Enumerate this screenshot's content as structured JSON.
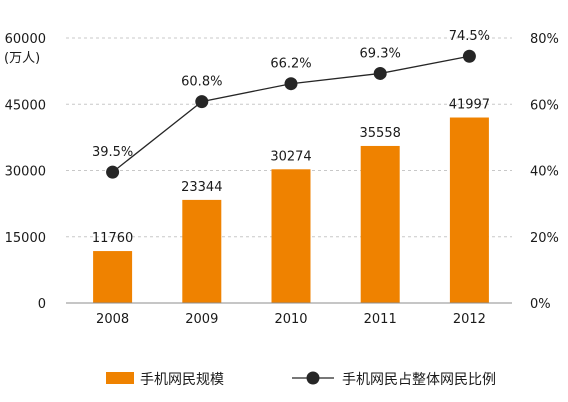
{
  "chart_data": {
    "type": "bar",
    "categories": [
      "2008",
      "2009",
      "2010",
      "2011",
      "2012"
    ],
    "left_axis": {
      "ticks": [
        "0",
        "15000",
        "30000",
        "45000",
        "60000"
      ],
      "unit": "(万人)",
      "ylim": [
        0,
        60000
      ]
    },
    "right_axis": {
      "ticks": [
        "0%",
        "20%",
        "40%",
        "60%",
        "80%"
      ],
      "ylim": [
        0,
        80
      ]
    },
    "series": [
      {
        "name": "手机网民规模",
        "type": "bar",
        "axis": "left",
        "values": [
          11760,
          23344,
          30274,
          35558,
          41997
        ],
        "labels": [
          "11760",
          "23344",
          "30274",
          "35558",
          "41997"
        ],
        "color": "#ef8200"
      },
      {
        "name": "手机网民占整体网民比例",
        "type": "line",
        "axis": "right",
        "values": [
          39.5,
          60.8,
          66.2,
          69.3,
          74.5
        ],
        "labels": [
          "39.5%",
          "60.8%",
          "66.2%",
          "69.3%",
          "74.5%"
        ],
        "color": "#262626"
      }
    ],
    "grid": true,
    "legend_position": "bottom"
  }
}
